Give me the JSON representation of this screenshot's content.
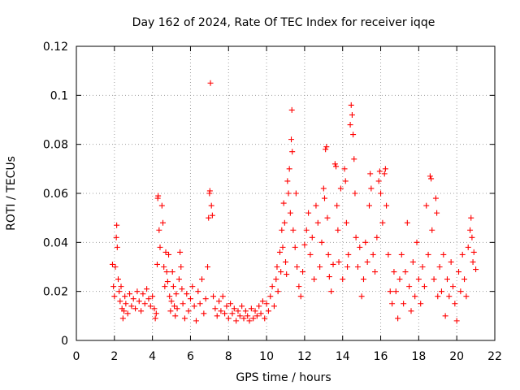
{
  "chart_data": {
    "type": "scatter",
    "title": "Day 162 of 2024, Rate Of TEC Index for receiver iqqe",
    "xlabel": "GPS time / hours",
    "ylabel": "ROTI / TECUs",
    "xlim": [
      0,
      22
    ],
    "ylim": [
      0,
      0.12
    ],
    "x_ticks": [
      0,
      2,
      4,
      6,
      8,
      10,
      12,
      14,
      16,
      18,
      20,
      22
    ],
    "x_tick_labels": [
      "0",
      "2",
      "4",
      "6",
      "8",
      "10",
      "12",
      "14",
      "16",
      "18",
      "20",
      "22"
    ],
    "y_ticks": [
      0,
      0.02,
      0.04,
      0.06,
      0.08,
      0.1,
      0.12
    ],
    "y_tick_labels": [
      "0",
      "0.02",
      "0.04",
      "0.06",
      "0.08",
      "0.1",
      "0.12"
    ],
    "grid": true,
    "marker": "plus",
    "series": [
      {
        "name": "ROTI",
        "color": "#ff0000",
        "points": [
          [
            1.9,
            0.031
          ],
          [
            1.95,
            0.022
          ],
          [
            2.0,
            0.018
          ],
          [
            2.05,
            0.03
          ],
          [
            2.1,
            0.042
          ],
          [
            2.12,
            0.047
          ],
          [
            2.15,
            0.038
          ],
          [
            2.2,
            0.025
          ],
          [
            2.25,
            0.02
          ],
          [
            2.3,
            0.016
          ],
          [
            2.35,
            0.022
          ],
          [
            2.4,
            0.013
          ],
          [
            2.45,
            0.009
          ],
          [
            2.5,
            0.012
          ],
          [
            2.55,
            0.018
          ],
          [
            2.6,
            0.015
          ],
          [
            2.7,
            0.011
          ],
          [
            2.8,
            0.019
          ],
          [
            2.9,
            0.014
          ],
          [
            3.0,
            0.017
          ],
          [
            3.1,
            0.013
          ],
          [
            3.2,
            0.02
          ],
          [
            3.3,
            0.016
          ],
          [
            3.4,
            0.012
          ],
          [
            3.5,
            0.019
          ],
          [
            3.6,
            0.015
          ],
          [
            3.7,
            0.021
          ],
          [
            3.8,
            0.017
          ],
          [
            3.9,
            0.014
          ],
          [
            4.0,
            0.018
          ],
          [
            4.1,
            0.013
          ],
          [
            4.15,
            0.009
          ],
          [
            4.2,
            0.011
          ],
          [
            4.25,
            0.031
          ],
          [
            4.28,
            0.058
          ],
          [
            4.3,
            0.059
          ],
          [
            4.35,
            0.045
          ],
          [
            4.4,
            0.038
          ],
          [
            4.5,
            0.055
          ],
          [
            4.55,
            0.048
          ],
          [
            4.6,
            0.03
          ],
          [
            4.65,
            0.022
          ],
          [
            4.7,
            0.036
          ],
          [
            4.75,
            0.028
          ],
          [
            4.8,
            0.024
          ],
          [
            4.85,
            0.035
          ],
          [
            4.9,
            0.018
          ],
          [
            4.95,
            0.012
          ],
          [
            5.0,
            0.016
          ],
          [
            5.05,
            0.028
          ],
          [
            5.1,
            0.022
          ],
          [
            5.15,
            0.014
          ],
          [
            5.2,
            0.01
          ],
          [
            5.25,
            0.019
          ],
          [
            5.3,
            0.013
          ],
          [
            5.4,
            0.025
          ],
          [
            5.45,
            0.036
          ],
          [
            5.5,
            0.03
          ],
          [
            5.55,
            0.021
          ],
          [
            5.6,
            0.015
          ],
          [
            5.7,
            0.009
          ],
          [
            5.8,
            0.019
          ],
          [
            5.9,
            0.012
          ],
          [
            6.0,
            0.017
          ],
          [
            6.1,
            0.022
          ],
          [
            6.2,
            0.014
          ],
          [
            6.3,
            0.008
          ],
          [
            6.4,
            0.02
          ],
          [
            6.5,
            0.015
          ],
          [
            6.6,
            0.025
          ],
          [
            6.7,
            0.011
          ],
          [
            6.8,
            0.017
          ],
          [
            6.9,
            0.03
          ],
          [
            6.95,
            0.05
          ],
          [
            7.0,
            0.06
          ],
          [
            7.02,
            0.061
          ],
          [
            7.05,
            0.105
          ],
          [
            7.1,
            0.055
          ],
          [
            7.15,
            0.051
          ],
          [
            7.2,
            0.018
          ],
          [
            7.3,
            0.013
          ],
          [
            7.4,
            0.01
          ],
          [
            7.5,
            0.016
          ],
          [
            7.6,
            0.012
          ],
          [
            7.7,
            0.018
          ],
          [
            7.8,
            0.011
          ],
          [
            7.9,
            0.014
          ],
          [
            8.0,
            0.009
          ],
          [
            8.1,
            0.015
          ],
          [
            8.2,
            0.011
          ],
          [
            8.3,
            0.013
          ],
          [
            8.4,
            0.008
          ],
          [
            8.5,
            0.012
          ],
          [
            8.6,
            0.01
          ],
          [
            8.7,
            0.014
          ],
          [
            8.8,
            0.009
          ],
          [
            8.9,
            0.012
          ],
          [
            9.0,
            0.01
          ],
          [
            9.1,
            0.008
          ],
          [
            9.2,
            0.013
          ],
          [
            9.3,
            0.009
          ],
          [
            9.4,
            0.012
          ],
          [
            9.5,
            0.01
          ],
          [
            9.6,
            0.014
          ],
          [
            9.7,
            0.011
          ],
          [
            9.8,
            0.016
          ],
          [
            9.9,
            0.009
          ],
          [
            10.0,
            0.015
          ],
          [
            10.1,
            0.012
          ],
          [
            10.2,
            0.018
          ],
          [
            10.3,
            0.022
          ],
          [
            10.4,
            0.014
          ],
          [
            10.5,
            0.025
          ],
          [
            10.55,
            0.03
          ],
          [
            10.6,
            0.02
          ],
          [
            10.7,
            0.036
          ],
          [
            10.75,
            0.028
          ],
          [
            10.8,
            0.045
          ],
          [
            10.85,
            0.038
          ],
          [
            10.9,
            0.056
          ],
          [
            10.95,
            0.048
          ],
          [
            11.0,
            0.032
          ],
          [
            11.05,
            0.027
          ],
          [
            11.1,
            0.065
          ],
          [
            11.15,
            0.06
          ],
          [
            11.2,
            0.07
          ],
          [
            11.25,
            0.052
          ],
          [
            11.3,
            0.082
          ],
          [
            11.33,
            0.094
          ],
          [
            11.35,
            0.077
          ],
          [
            11.4,
            0.045
          ],
          [
            11.5,
            0.038
          ],
          [
            11.55,
            0.06
          ],
          [
            11.6,
            0.03
          ],
          [
            11.7,
            0.022
          ],
          [
            11.8,
            0.018
          ],
          [
            11.9,
            0.028
          ],
          [
            12.0,
            0.039
          ],
          [
            12.1,
            0.045
          ],
          [
            12.2,
            0.052
          ],
          [
            12.3,
            0.035
          ],
          [
            12.4,
            0.042
          ],
          [
            12.5,
            0.025
          ],
          [
            12.6,
            0.055
          ],
          [
            12.7,
            0.048
          ],
          [
            12.8,
            0.03
          ],
          [
            12.9,
            0.04
          ],
          [
            13.0,
            0.062
          ],
          [
            13.05,
            0.058
          ],
          [
            13.1,
            0.078
          ],
          [
            13.15,
            0.079
          ],
          [
            13.2,
            0.05
          ],
          [
            13.25,
            0.035
          ],
          [
            13.3,
            0.026
          ],
          [
            13.4,
            0.02
          ],
          [
            13.5,
            0.031
          ],
          [
            13.6,
            0.072
          ],
          [
            13.65,
            0.071
          ],
          [
            13.7,
            0.055
          ],
          [
            13.75,
            0.045
          ],
          [
            13.8,
            0.032
          ],
          [
            13.9,
            0.062
          ],
          [
            14.0,
            0.025
          ],
          [
            14.1,
            0.07
          ],
          [
            14.15,
            0.065
          ],
          [
            14.2,
            0.048
          ],
          [
            14.25,
            0.03
          ],
          [
            14.3,
            0.035
          ],
          [
            14.4,
            0.088
          ],
          [
            14.45,
            0.096
          ],
          [
            14.5,
            0.092
          ],
          [
            14.55,
            0.084
          ],
          [
            14.6,
            0.074
          ],
          [
            14.65,
            0.06
          ],
          [
            14.7,
            0.042
          ],
          [
            14.8,
            0.03
          ],
          [
            14.9,
            0.038
          ],
          [
            15.0,
            0.018
          ],
          [
            15.1,
            0.025
          ],
          [
            15.2,
            0.04
          ],
          [
            15.3,
            0.032
          ],
          [
            15.4,
            0.055
          ],
          [
            15.45,
            0.068
          ],
          [
            15.5,
            0.062
          ],
          [
            15.6,
            0.035
          ],
          [
            15.7,
            0.028
          ],
          [
            15.8,
            0.042
          ],
          [
            15.9,
            0.065
          ],
          [
            15.95,
            0.069
          ],
          [
            16.0,
            0.06
          ],
          [
            16.1,
            0.048
          ],
          [
            16.2,
            0.068
          ],
          [
            16.25,
            0.07
          ],
          [
            16.3,
            0.055
          ],
          [
            16.4,
            0.035
          ],
          [
            16.5,
            0.02
          ],
          [
            16.6,
            0.015
          ],
          [
            16.7,
            0.028
          ],
          [
            16.8,
            0.02
          ],
          [
            16.9,
            0.009
          ],
          [
            17.0,
            0.025
          ],
          [
            17.1,
            0.035
          ],
          [
            17.2,
            0.015
          ],
          [
            17.3,
            0.028
          ],
          [
            17.4,
            0.048
          ],
          [
            17.5,
            0.022
          ],
          [
            17.6,
            0.012
          ],
          [
            17.7,
            0.032
          ],
          [
            17.8,
            0.018
          ],
          [
            17.9,
            0.04
          ],
          [
            18.0,
            0.025
          ],
          [
            18.1,
            0.015
          ],
          [
            18.2,
            0.03
          ],
          [
            18.3,
            0.022
          ],
          [
            18.4,
            0.055
          ],
          [
            18.5,
            0.035
          ],
          [
            18.6,
            0.067
          ],
          [
            18.65,
            0.066
          ],
          [
            18.7,
            0.045
          ],
          [
            18.8,
            0.025
          ],
          [
            18.9,
            0.058
          ],
          [
            18.95,
            0.052
          ],
          [
            19.0,
            0.018
          ],
          [
            19.1,
            0.03
          ],
          [
            19.2,
            0.02
          ],
          [
            19.3,
            0.035
          ],
          [
            19.4,
            0.01
          ],
          [
            19.5,
            0.025
          ],
          [
            19.6,
            0.018
          ],
          [
            19.7,
            0.032
          ],
          [
            19.8,
            0.022
          ],
          [
            19.9,
            0.015
          ],
          [
            20.0,
            0.008
          ],
          [
            20.1,
            0.028
          ],
          [
            20.2,
            0.02
          ],
          [
            20.3,
            0.035
          ],
          [
            20.4,
            0.025
          ],
          [
            20.5,
            0.018
          ],
          [
            20.6,
            0.038
          ],
          [
            20.7,
            0.045
          ],
          [
            20.75,
            0.05
          ],
          [
            20.8,
            0.042
          ],
          [
            20.85,
            0.032
          ],
          [
            20.9,
            0.036
          ],
          [
            21.0,
            0.029
          ]
        ]
      }
    ]
  }
}
